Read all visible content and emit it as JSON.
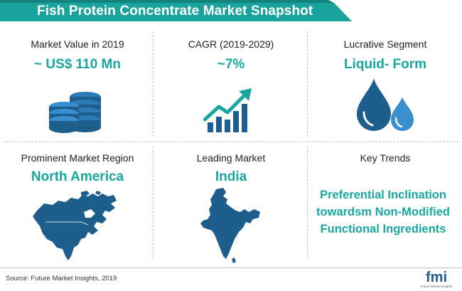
{
  "title": "Fish Protein Concentrate Market Snapshot",
  "cells": [
    {
      "label": "Market Value in 2019",
      "value": "~ US$ 110 Mn",
      "icon": "coins-stack-icon"
    },
    {
      "label": "CAGR (2019-2029)",
      "value": "~7%",
      "icon": "growth-chart-icon"
    },
    {
      "label": "Lucrative Segment",
      "value": "Liquid- Form",
      "icon": "water-drops-icon"
    },
    {
      "label": "Prominent Market Region",
      "value": "North America",
      "icon": "north-america-map-icon"
    },
    {
      "label": "Leading Market",
      "value": "India",
      "icon": "india-map-icon"
    },
    {
      "label": "Key Trends",
      "value_lines": [
        "Preferential Inclination",
        "towardsm Non-Modified",
        "Functional Ingredients"
      ]
    }
  ],
  "source": "Source: Future Market Insights, 2019",
  "logo": {
    "name": "fmi",
    "tagline": "Future Market Insights"
  },
  "colors": {
    "accent": "#17a7a0",
    "title_bg": "#1aa39c",
    "icon_blue": "#1e5e8c"
  }
}
